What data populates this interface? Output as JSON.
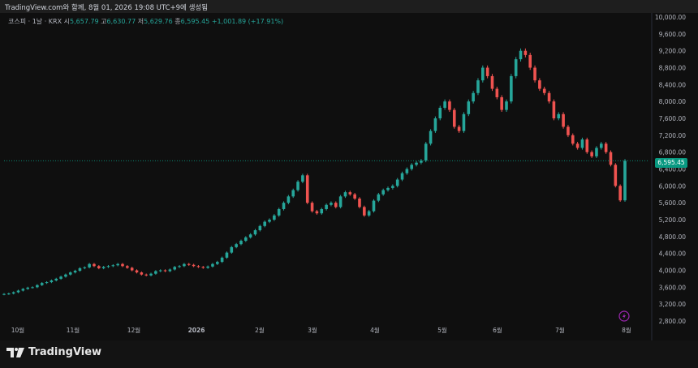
{
  "header": {
    "text": "TradingView.com와 함께, 8월 01, 2026 19:08 UTC+9에 생성됨"
  },
  "legend": {
    "symbol": "코스피 · 1날 · KRX",
    "open_label": "시",
    "open": "5,657.79",
    "high_label": "고",
    "high": "6,630.77",
    "low_label": "저",
    "low": "5,629.76",
    "close_label": "종",
    "close": "6,595.45",
    "change": "+1,001.89 (+17.91%)"
  },
  "last_price_label": "6,595.45",
  "brand": {
    "name": "TradingView"
  },
  "colors": {
    "up": "#26a69a",
    "down": "#ef5350",
    "price_line": "#089981",
    "lightning": "#9c27b0"
  },
  "chart_data": {
    "type": "candlestick",
    "y_axis": {
      "min": 2800,
      "max": 10000,
      "scale": "linear",
      "tick_labels": [
        "10,000.00",
        "9,600.00",
        "9,200.00",
        "8,800.00",
        "8,400.00",
        "8,000.00",
        "7,600.00",
        "7,200.00",
        "6,800.00",
        "6,400.00",
        "6,000.00",
        "5,600.00",
        "5,200.00",
        "4,800.00",
        "4,400.00",
        "4,000.00",
        "3,600.00",
        "3,200.00",
        "2,800.00"
      ],
      "tick_values": [
        10000,
        9600,
        9200,
        8800,
        8400,
        8000,
        7600,
        7200,
        6800,
        6400,
        6000,
        5600,
        5200,
        4800,
        4400,
        4000,
        3600,
        3200,
        2800
      ]
    },
    "x_axis": {
      "labels": [
        "10월",
        "11월",
        "12월",
        "2026",
        "2월",
        "3월",
        "4월",
        "5월",
        "6월",
        "7월",
        "8월"
      ]
    },
    "last_price": 6595.45,
    "series": [
      {
        "values": [
          3440,
          3450,
          3480,
          3520,
          3560,
          3590,
          3600,
          3650,
          3700,
          3720,
          3760,
          3800,
          3850,
          3900,
          3950,
          3990,
          4050,
          4070,
          4150,
          4100,
          4050,
          4080,
          4100,
          4120,
          4150,
          4100,
          4060,
          4000,
          3950,
          3900,
          3880,
          3920,
          3980,
          4000,
          3980,
          4020,
          4080,
          4100,
          4150,
          4130,
          4100,
          4080,
          4060,
          4090,
          4150,
          4200,
          4300,
          4420,
          4550,
          4620,
          4700,
          4780,
          4850,
          4950,
          5050,
          5150,
          5200,
          5300,
          5450,
          5600,
          5750,
          5900,
          6100,
          6250,
          5600,
          5400,
          5350,
          5450,
          5550,
          5600,
          5500,
          5750,
          5850,
          5800,
          5700,
          5500,
          5300,
          5400,
          5650,
          5800,
          5900,
          5950,
          6000,
          6150,
          6300,
          6400,
          6500,
          6550,
          6600,
          7000,
          7300,
          7600,
          7850,
          8000,
          7800,
          7400,
          7300,
          7700,
          8000,
          8200,
          8500,
          8800,
          8600,
          8300,
          8100,
          7800,
          8000,
          8600,
          9000,
          9200,
          9100,
          8800,
          8500,
          8300,
          8200,
          8000,
          7600,
          7700,
          7400,
          7200,
          7000,
          6900,
          7100,
          6800,
          6700,
          6900,
          7000,
          6800,
          6500,
          6000,
          5657,
          6595
        ]
      }
    ]
  }
}
